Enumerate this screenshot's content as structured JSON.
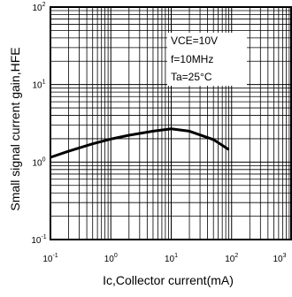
{
  "chart_data": {
    "type": "line",
    "x_scale": "log",
    "y_scale": "log",
    "xlim": [
      0.1,
      1000
    ],
    "ylim": [
      0.1,
      100
    ],
    "xlabel": "Ic,Collector current(mA)",
    "ylabel": "Small signal current gain,HFE",
    "x_ticks": [
      {
        "value": 0.1,
        "base": "10",
        "exp": "-1"
      },
      {
        "value": 1,
        "base": "10",
        "exp": "0"
      },
      {
        "value": 10,
        "base": "10",
        "exp": "1"
      },
      {
        "value": 100,
        "base": "10",
        "exp": "2"
      },
      {
        "value": 1000,
        "base": "10",
        "exp": "3"
      }
    ],
    "y_ticks": [
      {
        "value": 0.1,
        "base": "10",
        "exp": "-1"
      },
      {
        "value": 1,
        "base": "10",
        "exp": "0"
      },
      {
        "value": 10,
        "base": "10",
        "exp": "1"
      },
      {
        "value": 100,
        "base": "10",
        "exp": "2"
      }
    ],
    "grid": true,
    "annotations": [
      "VCE=10V",
      "f=10MHz",
      "Ta=25°C"
    ],
    "series": [
      {
        "x": [
          0.1,
          0.2,
          0.5,
          1,
          2,
          5,
          10,
          20,
          50,
          90
        ],
        "y": [
          1.15,
          1.38,
          1.72,
          1.98,
          2.22,
          2.5,
          2.68,
          2.5,
          1.95,
          1.45
        ]
      }
    ]
  }
}
